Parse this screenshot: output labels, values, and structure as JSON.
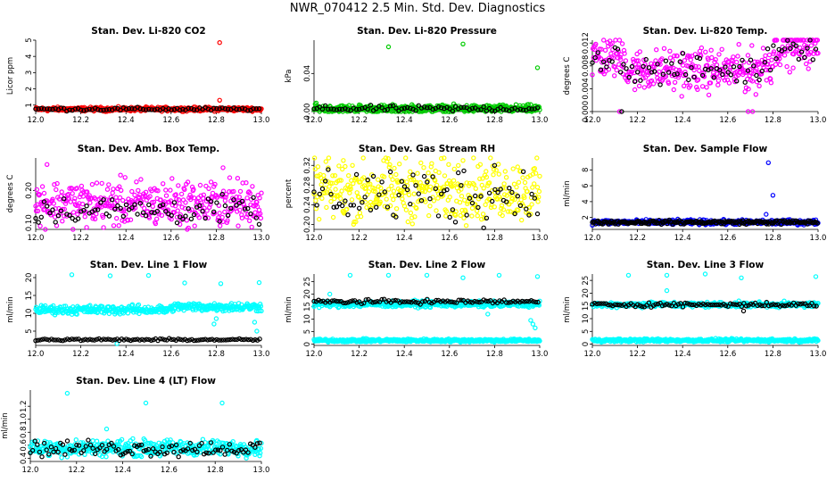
{
  "title": "NWR_070412  2.5 Min. Std. Dev. Diagnostics",
  "colors": {
    "red": "#ff0000",
    "green": "#00cc00",
    "magenta": "#ff00ff",
    "yellow": "#ffff00",
    "blue": "#0000ff",
    "cyan": "#00ffff",
    "black": "#000000"
  },
  "chart_data": [
    {
      "type": "scatter",
      "title": "Stan. Dev. Li-820 CO2",
      "ylabel": "Licor ppm",
      "xlim": [
        12.0,
        13.0
      ],
      "ylim": [
        0.6,
        5.0
      ],
      "xticks": [
        "12.0",
        "12.2",
        "12.4",
        "12.6",
        "12.8",
        "13.0"
      ],
      "yticks": [
        "1",
        "2",
        "3",
        "4",
        "5"
      ],
      "series": [
        {
          "name": "all",
          "color": "red",
          "base": 0.75,
          "spread": 0.06,
          "every": 1,
          "outliers": [
            [
              12.815,
              4.85
            ],
            [
              12.815,
              1.3
            ],
            [
              12.31,
              0.6
            ]
          ]
        },
        {
          "name": "reference",
          "color": "black",
          "base": 0.75,
          "spread": 0.05,
          "every": 5,
          "outliers": []
        }
      ]
    },
    {
      "type": "scatter",
      "title": "Stan. Dev. Li-820 Pressure",
      "ylabel": "kPa",
      "xlim": [
        12.0,
        13.0
      ],
      "ylim": [
        0.0,
        0.075
      ],
      "xticks": [
        "12.0",
        "12.2",
        "12.4",
        "12.6",
        "12.8",
        "13.0"
      ],
      "yticks": [
        "0.00",
        "0.04"
      ],
      "series": [
        {
          "name": "all",
          "color": "green",
          "base": 0.003,
          "spread": 0.002,
          "every": 1,
          "outliers": [
            [
              12.33,
              0.068
            ],
            [
              12.66,
              0.071
            ],
            [
              12.99,
              0.046
            ],
            [
              12.01,
              0.009
            ],
            [
              12.2,
              0.007
            ]
          ]
        },
        {
          "name": "reference",
          "color": "black",
          "base": 0.003,
          "spread": 0.0015,
          "every": 5,
          "outliers": []
        }
      ]
    },
    {
      "type": "scatter",
      "title": "Stan. Dev. Li-820 Temp.",
      "ylabel": "degrees C",
      "xlim": [
        12.0,
        13.0
      ],
      "ylim": [
        0.0,
        0.0125
      ],
      "xticks": [
        "12.0",
        "12.2",
        "12.4",
        "12.6",
        "12.8",
        "13.0"
      ],
      "yticks": [
        "0.000",
        "0.004",
        "0.008",
        "0.012"
      ],
      "series": [
        {
          "name": "all",
          "color": "magenta",
          "base": 0.0085,
          "spread": 0.0018,
          "every": 1,
          "outliers": [
            [
              12.12,
              0.0
            ],
            [
              12.69,
              0.0
            ],
            [
              12.71,
              0.0
            ]
          ]
        },
        {
          "name": "reference",
          "color": "black",
          "base": 0.0085,
          "spread": 0.0012,
          "every": 5,
          "outliers": [
            [
              12.13,
              0.0
            ]
          ]
        }
      ]
    },
    {
      "type": "scatter",
      "title": "Stan. Dev. Amb. Box Temp.",
      "ylabel": "degrees C",
      "xlim": [
        12.0,
        13.0
      ],
      "ylim": [
        0.08,
        0.3
      ],
      "xticks": [
        "12.0",
        "12.2",
        "12.4",
        "12.6",
        "12.8",
        "13.0"
      ],
      "yticks": [
        "0.10",
        "0.20"
      ],
      "series": [
        {
          "name": "all",
          "color": "magenta",
          "base": 0.16,
          "spread": 0.035,
          "every": 1,
          "outliers": [
            [
              12.05,
              0.28
            ],
            [
              12.83,
              0.27
            ]
          ]
        },
        {
          "name": "reference",
          "color": "black",
          "base": 0.14,
          "spread": 0.02,
          "every": 5,
          "outliers": []
        }
      ]
    },
    {
      "type": "scatter",
      "title": "Stan. Dev. Gas Stream RH",
      "ylabel": "percent",
      "xlim": [
        12.0,
        13.0
      ],
      "ylim": [
        0.19,
        0.335
      ],
      "xticks": [
        "12.0",
        "12.2",
        "12.4",
        "12.6",
        "12.8",
        "13.0"
      ],
      "yticks": [
        "0.20",
        "0.24",
        "0.28",
        "0.32"
      ],
      "series": [
        {
          "name": "all",
          "color": "yellow",
          "base": 0.27,
          "spread": 0.03,
          "every": 1,
          "outliers": [
            [
              12.13,
              0.33
            ],
            [
              12.66,
              0.33
            ]
          ]
        },
        {
          "name": "reference",
          "color": "black",
          "base": 0.26,
          "spread": 0.03,
          "every": 5,
          "outliers": [
            [
              12.8,
              0.32
            ]
          ]
        }
      ]
    },
    {
      "type": "scatter",
      "title": "Stan. Dev. Sample Flow",
      "ylabel": "ml/min",
      "xlim": [
        12.0,
        13.0
      ],
      "ylim": [
        0.5,
        9.5
      ],
      "xticks": [
        "12.0",
        "12.2",
        "12.4",
        "12.6",
        "12.8",
        "13.0"
      ],
      "yticks": [
        "2",
        "4",
        "6",
        "8"
      ],
      "series": [
        {
          "name": "all",
          "color": "blue",
          "base": 1.4,
          "spread": 0.15,
          "every": 1,
          "outliers": [
            [
              12.78,
              8.9
            ],
            [
              12.8,
              4.8
            ],
            [
              12.77,
              2.4
            ]
          ]
        },
        {
          "name": "reference",
          "color": "black",
          "base": 1.4,
          "spread": 0.12,
          "every": 2,
          "outliers": []
        }
      ]
    },
    {
      "type": "scatter",
      "title": "Stan. Dev. Line 1 Flow",
      "ylabel": "ml/min",
      "xlim": [
        12.0,
        13.0
      ],
      "ylim": [
        1.0,
        21.0
      ],
      "xticks": [
        "12.0",
        "12.2",
        "12.4",
        "12.6",
        "12.8",
        "13.0"
      ],
      "yticks": [
        "5",
        "10",
        "15",
        "20"
      ],
      "series": [
        {
          "name": "all",
          "color": "cyan",
          "base": 11.0,
          "spread": 0.6,
          "every": 1,
          "outliers": [
            [
              12.16,
              20.8
            ],
            [
              12.33,
              20.5
            ],
            [
              12.5,
              20.6
            ],
            [
              12.66,
              18.5
            ],
            [
              12.82,
              18.3
            ],
            [
              12.8,
              8.5
            ],
            [
              12.79,
              7.0
            ],
            [
              12.97,
              7.5
            ],
            [
              12.98,
              5.0
            ],
            [
              12.99,
              18.6
            ],
            [
              12.36,
              1.5
            ]
          ]
        },
        {
          "name": "reference",
          "color": "black",
          "base": 2.6,
          "spread": 0.15,
          "every": 4,
          "outliers": []
        }
      ]
    },
    {
      "type": "scatter",
      "title": "Stan. Dev. Line 2 Flow",
      "ylabel": "ml/min",
      "xlim": [
        12.0,
        13.0
      ],
      "ylim": [
        -0.5,
        28.0
      ],
      "xticks": [
        "12.0",
        "12.2",
        "12.4",
        "12.6",
        "12.8",
        "13.0"
      ],
      "yticks": [
        "0",
        "5",
        "10",
        "15",
        "20",
        "25"
      ],
      "series": [
        {
          "name": "all",
          "color": "cyan",
          "base": 1.5,
          "spread": 0.3,
          "every": 1,
          "outliers": [
            [
              12.16,
              27.5
            ],
            [
              12.33,
              27.5
            ],
            [
              12.5,
              27.5
            ],
            [
              12.66,
              26.5
            ],
            [
              12.82,
              27.5
            ],
            [
              12.99,
              27.0
            ],
            [
              12.07,
              20.0
            ],
            [
              12.97,
              8.0
            ],
            [
              12.96,
              9.5
            ],
            [
              12.98,
              6.5
            ],
            [
              12.77,
              12.0
            ]
          ]
        },
        {
          "name": "band",
          "color": "cyan",
          "base": 16.0,
          "spread": 0.6,
          "every": 1,
          "outliers": []
        },
        {
          "name": "reference",
          "color": "black",
          "base": 17.0,
          "spread": 0.4,
          "every": 4,
          "outliers": []
        }
      ]
    },
    {
      "type": "scatter",
      "title": "Stan. Dev. Line 3 Flow",
      "ylabel": "ml/min",
      "xlim": [
        12.0,
        13.0
      ],
      "ylim": [
        -0.5,
        27.5
      ],
      "xticks": [
        "12.0",
        "12.2",
        "12.4",
        "12.6",
        "12.8",
        "13.0"
      ],
      "yticks": [
        "0",
        "5",
        "10",
        "15",
        "20",
        "25"
      ],
      "series": [
        {
          "name": "all",
          "color": "cyan",
          "base": 1.5,
          "spread": 0.3,
          "every": 1,
          "outliers": [
            [
              12.16,
              27.0
            ],
            [
              12.33,
              27.0
            ],
            [
              12.5,
              27.5
            ],
            [
              12.66,
              26.0
            ],
            [
              12.99,
              26.5
            ],
            [
              12.33,
              21.0
            ]
          ]
        },
        {
          "name": "band",
          "color": "cyan",
          "base": 15.5,
          "spread": 0.5,
          "every": 1,
          "outliers": []
        },
        {
          "name": "reference",
          "color": "black",
          "base": 15.5,
          "spread": 0.4,
          "every": 4,
          "outliers": [
            [
              12.67,
              13.0
            ]
          ]
        }
      ]
    },
    {
      "type": "scatter",
      "title": "Stan. Dev. Line 4 (LT) Flow",
      "ylabel": "ml/min",
      "xlim": [
        12.0,
        13.0
      ],
      "ylim": [
        0.35,
        1.45
      ],
      "xticks": [
        "12.0",
        "12.2",
        "12.4",
        "12.6",
        "12.8",
        "13.0"
      ],
      "yticks": [
        "0.4",
        "0.6",
        "0.8",
        "1.0",
        "1.2"
      ],
      "series": [
        {
          "name": "all",
          "color": "cyan",
          "base": 0.56,
          "spread": 0.06,
          "every": 1,
          "outliers": [
            [
              12.16,
              1.4
            ],
            [
              12.5,
              1.25
            ],
            [
              12.83,
              1.25
            ],
            [
              12.33,
              0.85
            ],
            [
              12.16,
              0.42
            ]
          ]
        },
        {
          "name": "reference",
          "color": "black",
          "base": 0.55,
          "spread": 0.06,
          "every": 4,
          "outliers": []
        }
      ]
    }
  ]
}
